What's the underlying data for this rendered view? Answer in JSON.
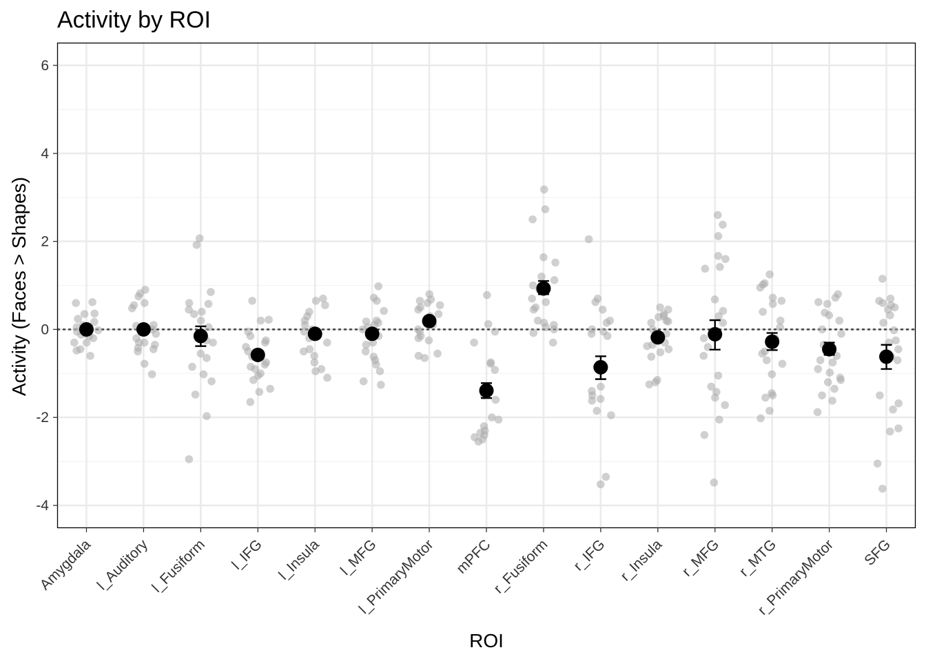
{
  "chart_data": {
    "type": "scatter",
    "title": "Activity by ROI",
    "xlabel": "ROI",
    "ylabel": "Activity (Faces > Shapes)",
    "ylim": [
      -4.5,
      6.5
    ],
    "yticks": [
      -4,
      -2,
      0,
      2,
      4,
      6
    ],
    "reference_line": 0,
    "categories": [
      "Amygdala",
      "l_Auditory",
      "l_Fusiform",
      "l_IFG",
      "l_Insula",
      "l_MFG",
      "l_PrimaryMotor",
      "mPFC",
      "r_Fusiform",
      "r_IFG",
      "r_Insula",
      "r_MFG",
      "r_MTG",
      "r_PrimaryMotor",
      "SFG"
    ],
    "series": [
      {
        "name": "mean",
        "values": [
          0.0,
          0.0,
          -0.15,
          -0.58,
          -0.1,
          -0.1,
          0.19,
          -1.39,
          0.93,
          -0.86,
          -0.18,
          -0.11,
          -0.28,
          -0.45,
          -0.62
        ],
        "error_low": [
          -0.08,
          -0.08,
          -0.38,
          -0.66,
          -0.17,
          -0.19,
          0.1,
          -1.56,
          0.8,
          -1.13,
          -0.25,
          -0.46,
          -0.47,
          -0.58,
          -0.9
        ],
        "error_high": [
          0.08,
          0.08,
          0.07,
          -0.5,
          -0.03,
          -0.01,
          0.28,
          -1.22,
          1.1,
          -0.61,
          -0.11,
          0.21,
          -0.08,
          -0.3,
          -0.35
        ]
      },
      {
        "name": "individual",
        "points": [
          [
            0.62,
            0.6,
            0.35,
            0.36,
            0.24,
            0.17,
            0.05,
            -0.02,
            -0.12,
            -0.2,
            -0.3,
            -0.45,
            -0.6,
            -0.3,
            -0.48,
            0.1,
            -0.15,
            0.0,
            -0.1,
            -0.05
          ],
          [
            0.9,
            0.82,
            0.75,
            0.6,
            0.55,
            0.48,
            0.1,
            0.08,
            0.05,
            -0.1,
            -0.2,
            -0.3,
            -0.35,
            -0.45,
            -0.5,
            -0.78,
            -1.02,
            -0.3,
            0.0,
            -0.42
          ],
          [
            2.07,
            1.92,
            0.85,
            0.6,
            0.58,
            0.45,
            0.4,
            0.35,
            0.2,
            0.05,
            -0.25,
            -0.3,
            -0.55,
            -0.65,
            -0.85,
            -1.02,
            -1.18,
            -1.48,
            -1.97,
            -2.95
          ],
          [
            0.65,
            0.22,
            0.2,
            -0.05,
            -0.15,
            -0.25,
            -0.3,
            -0.4,
            -0.5,
            -0.62,
            -0.75,
            -0.85,
            -0.9,
            -1.0,
            -1.05,
            -1.15,
            -1.35,
            -1.42,
            -1.65,
            -0.8
          ],
          [
            0.7,
            0.65,
            0.55,
            0.4,
            0.3,
            0.2,
            0.0,
            -0.05,
            -0.1,
            -0.2,
            -0.3,
            -0.45,
            -0.6,
            -0.75,
            -0.9,
            -0.95,
            -1.1,
            -0.15,
            0.1,
            -0.5
          ],
          [
            0.98,
            0.72,
            0.65,
            0.42,
            0.2,
            0.18,
            0.15,
            0.1,
            0.05,
            -0.15,
            -0.3,
            -0.35,
            -0.5,
            -0.62,
            -0.7,
            -0.8,
            -0.95,
            -1.18,
            -1.26,
            0.0
          ],
          [
            0.8,
            0.68,
            0.65,
            0.6,
            0.55,
            0.5,
            0.45,
            0.35,
            0.3,
            0.2,
            0.1,
            0.0,
            -0.05,
            -0.15,
            -0.2,
            -0.25,
            -0.55,
            -0.6,
            -0.65,
            0.25
          ],
          [
            0.78,
            0.12,
            -0.05,
            -0.3,
            -0.75,
            -0.78,
            -0.92,
            -1.45,
            -1.5,
            -2.0,
            -2.05,
            -2.2,
            -2.3,
            -2.4,
            -2.45,
            -2.5,
            -2.55,
            -1.38,
            -1.6,
            -2.35
          ],
          [
            3.18,
            2.73,
            2.5,
            1.64,
            1.52,
            1.2,
            1.12,
            1.0,
            0.9,
            0.7,
            0.62,
            0.5,
            0.45,
            0.2,
            0.15,
            0.1,
            0.05,
            0.0,
            -0.08,
            -0.3
          ],
          [
            2.05,
            0.7,
            0.62,
            0.45,
            0.2,
            0.15,
            0.0,
            -0.05,
            -0.15,
            -0.85,
            -1.3,
            -1.4,
            -1.5,
            -1.58,
            -1.62,
            -1.85,
            -1.95,
            -3.35,
            -3.52,
            -0.1
          ],
          [
            0.5,
            0.45,
            0.35,
            0.3,
            0.28,
            0.2,
            0.18,
            0.15,
            0.0,
            -0.1,
            -0.2,
            -0.3,
            -0.38,
            -0.45,
            -0.52,
            -0.62,
            -1.15,
            -1.2,
            -1.25,
            -0.35
          ],
          [
            2.6,
            2.38,
            2.12,
            1.67,
            1.6,
            1.42,
            1.38,
            0.68,
            0.42,
            0.3,
            0.15,
            -0.2,
            -0.4,
            -0.6,
            -1.05,
            -1.3,
            -1.42,
            -1.55,
            -1.72,
            -2.05,
            -2.4,
            -3.48
          ],
          [
            1.25,
            1.05,
            1.02,
            0.95,
            0.72,
            0.65,
            0.58,
            0.4,
            0.2,
            0.05,
            -0.2,
            -0.35,
            -0.5,
            -0.55,
            -0.7,
            -0.78,
            -1.02,
            -1.45,
            -1.5,
            -1.55,
            -1.85,
            -2.02
          ],
          [
            0.8,
            0.72,
            0.62,
            0.58,
            0.38,
            0.32,
            0.2,
            0.0,
            -0.1,
            -0.35,
            -0.6,
            -0.7,
            -0.75,
            -0.9,
            -0.98,
            -1.1,
            -1.15,
            -1.2,
            -1.35,
            -1.5,
            -1.62,
            -1.88
          ],
          [
            1.15,
            0.7,
            0.65,
            0.6,
            0.55,
            0.5,
            0.45,
            0.32,
            0.15,
            -0.02,
            -0.25,
            -0.3,
            -0.45,
            -0.62,
            -0.7,
            -1.5,
            -1.68,
            -1.82,
            -2.25,
            -2.32,
            -3.05,
            -3.62
          ]
        ]
      }
    ],
    "grid": true,
    "legend": "none"
  }
}
